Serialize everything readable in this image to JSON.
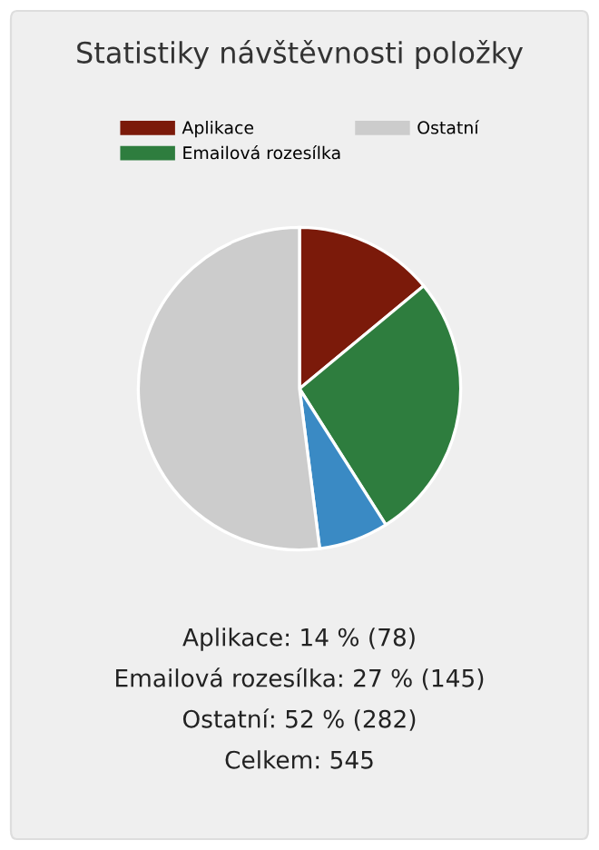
{
  "chart_data": {
    "type": "pie",
    "title": "Statistiky návštěvnosti položky",
    "categories": [
      "Aplikace",
      "Emailová rozesílka",
      null,
      "Ostatní"
    ],
    "values": [
      14,
      27,
      7,
      52
    ],
    "colors": [
      "#7b1a0a",
      "#2e7d3e",
      "#3a8ac4",
      "#cccccc"
    ],
    "legend": "top",
    "annotations": [
      "Aplikace: 14 % (78)",
      "Emailová rozesílka: 27 % (145)",
      "Ostatní: 52 % (282)",
      "Celkem: 545"
    ]
  }
}
